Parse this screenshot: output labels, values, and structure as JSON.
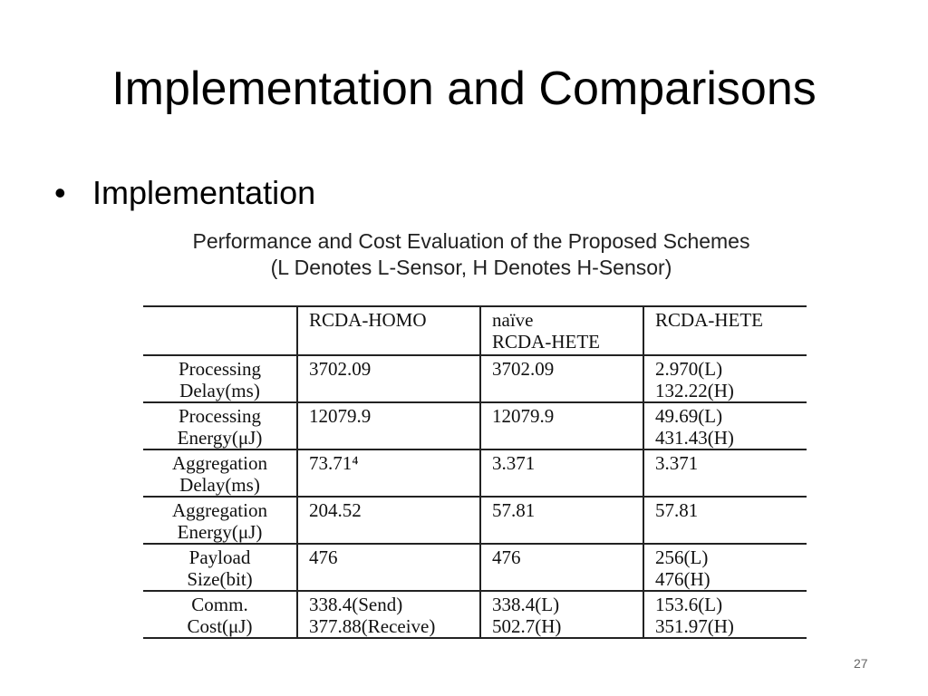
{
  "slide": {
    "title": "Implementation and Comparisons",
    "bullet": "Implementation",
    "page_number": "27"
  },
  "table": {
    "caption_line1": "Performance and Cost Evaluation of the Proposed Schemes",
    "caption_line2": "(L Denotes L-Sensor, H Denotes H-Sensor)",
    "headers": [
      [
        ""
      ],
      [
        "RCDA-HOMO"
      ],
      [
        "naïve",
        "RCDA-HETE"
      ],
      [
        "RCDA-HETE"
      ]
    ],
    "rows": [
      [
        [
          "Processing",
          "Delay(ms)"
        ],
        [
          "3702.09"
        ],
        [
          "3702.09"
        ],
        [
          "2.970(L)",
          "132.22(H)"
        ]
      ],
      [
        [
          "Processing",
          "Energy(μJ)"
        ],
        [
          "12079.9"
        ],
        [
          "12079.9"
        ],
        [
          "49.69(L)",
          "431.43(H)"
        ]
      ],
      [
        [
          "Aggregation",
          "Delay(ms)"
        ],
        [
          "73.71⁴"
        ],
        [
          "3.371"
        ],
        [
          "3.371"
        ]
      ],
      [
        [
          "Aggregation",
          "Energy(μJ)"
        ],
        [
          "204.52"
        ],
        [
          "57.81"
        ],
        [
          "57.81"
        ]
      ],
      [
        [
          "Payload",
          "Size(bit)"
        ],
        [
          "476"
        ],
        [
          "476"
        ],
        [
          "256(L)",
          "476(H)"
        ]
      ],
      [
        [
          "Comm.",
          "Cost(μJ)"
        ],
        [
          "338.4(Send)",
          "377.88(Receive)"
        ],
        [
          "338.4(L)",
          "502.7(H)"
        ],
        [
          "153.6(L)",
          "351.97(H)"
        ]
      ]
    ]
  }
}
